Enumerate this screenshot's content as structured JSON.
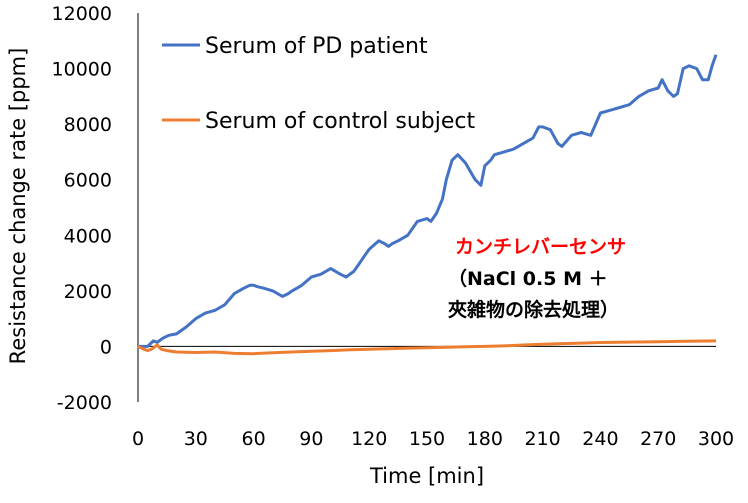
{
  "chart_data": {
    "type": "line",
    "xlabel": "Time [min]",
    "ylabel": "Resistance change rate [ppm]",
    "xlim": [
      0,
      300
    ],
    "ylim": [
      -2000,
      12000
    ],
    "x_ticks": [
      "0",
      "30",
      "60",
      "90",
      "120",
      "150",
      "180",
      "210",
      "240",
      "270",
      "300"
    ],
    "y_ticks": [
      "-2000",
      "0",
      "2000",
      "4000",
      "6000",
      "8000",
      "10000",
      "12000"
    ],
    "grid": false,
    "legend_position": "top-left",
    "series": [
      {
        "name": "Serum of PD patient",
        "color": "#4472C4",
        "x": [
          0,
          5,
          8,
          10,
          13,
          16,
          20,
          25,
          30,
          35,
          40,
          45,
          50,
          55,
          58,
          60,
          62,
          65,
          70,
          75,
          78,
          80,
          85,
          90,
          95,
          100,
          105,
          108,
          112,
          115,
          118,
          120,
          125,
          128,
          130,
          132,
          135,
          140,
          145,
          150,
          152,
          155,
          158,
          160,
          163,
          166,
          170,
          175,
          178,
          180,
          183,
          185,
          190,
          195,
          200,
          205,
          208,
          210,
          214,
          218,
          220,
          225,
          230,
          235,
          240,
          245,
          250,
          255,
          260,
          265,
          270,
          272,
          275,
          278,
          280,
          283,
          286,
          290,
          293,
          296,
          298,
          300
        ],
        "y": [
          0,
          0,
          200,
          150,
          300,
          400,
          450,
          700,
          1000,
          1200,
          1300,
          1500,
          1900,
          2100,
          2200,
          2200,
          2150,
          2100,
          2000,
          1800,
          1900,
          2000,
          2200,
          2500,
          2600,
          2800,
          2600,
          2500,
          2700,
          3000,
          3300,
          3500,
          3800,
          3700,
          3600,
          3700,
          3800,
          4000,
          4500,
          4600,
          4500,
          4800,
          5300,
          6000,
          6700,
          6900,
          6600,
          6000,
          5800,
          6500,
          6700,
          6900,
          7000,
          7100,
          7300,
          7500,
          7900,
          7900,
          7800,
          7300,
          7200,
          7600,
          7700,
          7600,
          8400,
          8500,
          8600,
          8700,
          9000,
          9200,
          9300,
          9600,
          9200,
          9000,
          9100,
          10000,
          10100,
          10000,
          9600,
          9600,
          10100,
          10500
        ]
      },
      {
        "name": "Serum of control subject",
        "color": "#ED7D31",
        "x": [
          0,
          3,
          5,
          7,
          9,
          10,
          12,
          15,
          20,
          30,
          40,
          50,
          60,
          70,
          80,
          90,
          100,
          110,
          120,
          130,
          140,
          150,
          160,
          170,
          180,
          190,
          200,
          210,
          220,
          230,
          240,
          250,
          260,
          270,
          280,
          290,
          300
        ],
        "y": [
          0,
          -100,
          -150,
          -100,
          0,
          50,
          -100,
          -150,
          -200,
          -220,
          -200,
          -250,
          -260,
          -230,
          -200,
          -170,
          -150,
          -120,
          -100,
          -80,
          -60,
          -50,
          -30,
          -10,
          0,
          20,
          50,
          80,
          100,
          120,
          140,
          150,
          160,
          170,
          180,
          190,
          200
        ]
      }
    ],
    "annotation": {
      "lines": [
        "カンチレバーセンサ",
        "（NaCl 0.5 M ＋",
        "夾雑物の除去処理）"
      ],
      "colors": [
        "#FF0000",
        "#000000",
        "#000000"
      ]
    }
  }
}
